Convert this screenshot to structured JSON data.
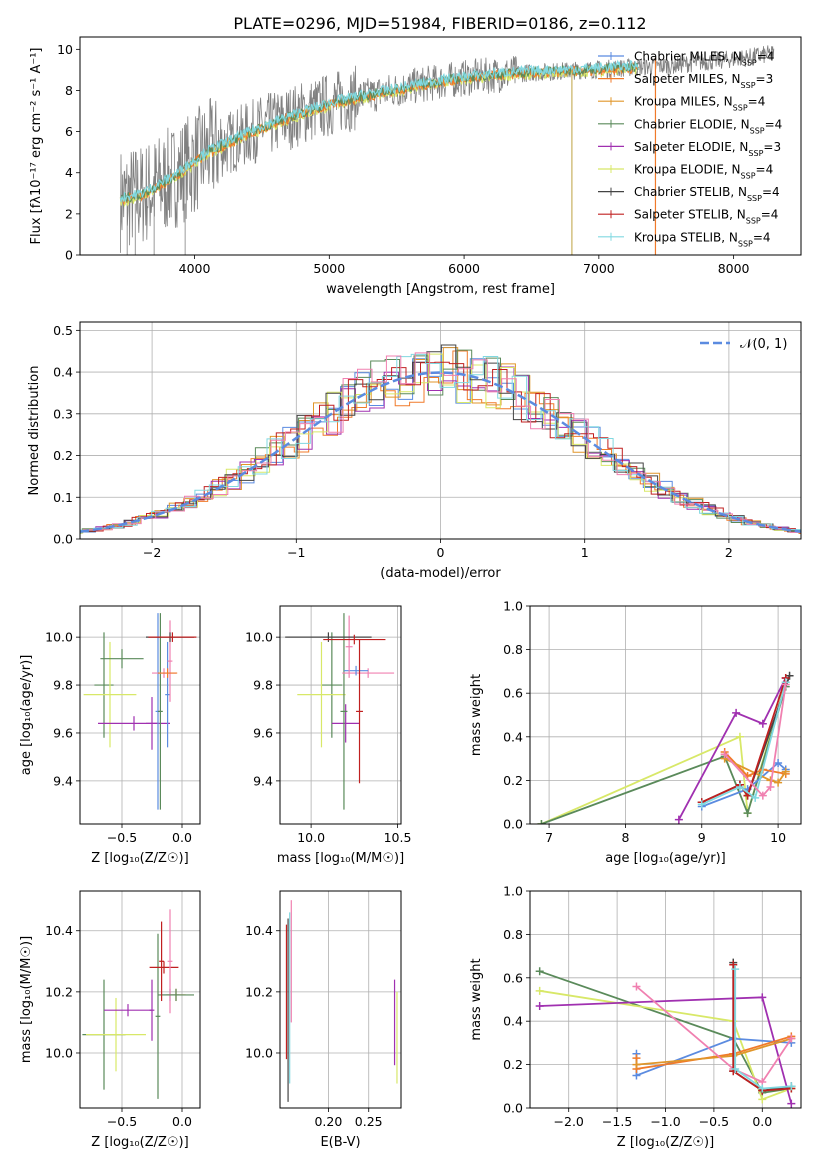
{
  "figure": {
    "title": "PLATE=0296, MJD=51984, FIBERID=0186, z=0.112"
  },
  "colors": {
    "chabrier_miles": "#5b8be0",
    "salpeter_miles": "#f07a2a",
    "kroupa_miles": "#e0962a",
    "chabrier_elodie": "#5a8a5a",
    "salpeter_elodie": "#a030b0",
    "kroupa_elodie": "#d8e868",
    "chabrier_stelib": "#444444",
    "salpeter_stelib": "#c02020",
    "kroupa_stelib": "#80d8e0",
    "pink": "#f080b0",
    "data": "#808080",
    "normal": "#5b8be0"
  },
  "chart_data": [
    {
      "id": "spectrum",
      "type": "line",
      "title": "PLATE=0296, MJD=51984, FIBERID=0186, z=0.112",
      "xlabel": "wavelength [Angstrom, rest frame]",
      "ylabel": "Flux [fλ10⁻¹⁷ erg cm⁻² s⁻¹ A⁻¹]",
      "xlim": [
        3150,
        8500
      ],
      "ylim": [
        0,
        10.6
      ],
      "xticks": [
        "4000",
        "5000",
        "6000",
        "7000",
        "8000"
      ],
      "yticks": [
        "0",
        "2",
        "4",
        "6",
        "8",
        "10"
      ],
      "grid": false,
      "legend_position": "right",
      "legend": [
        "Chabrier MILES, N_SSP=4",
        "Salpeter MILES, N_SSP=3",
        "Kroupa MILES, N_SSP=4",
        "Chabrier ELODIE, N_SSP=4",
        "Salpeter ELODIE, N_SSP=3",
        "Kroupa ELODIE, N_SSP=4",
        "Chabrier STELIB, N_SSP=4",
        "Salpeter STELIB, N_SSP=4",
        "Kroupa STELIB, N_SSP=4"
      ],
      "continuum_x": [
        3450,
        3600,
        3800,
        3950,
        4100,
        4300,
        4500,
        4800,
        5100,
        5400,
        5700,
        6000,
        6300,
        6600,
        6900,
        7200,
        7500,
        7800,
        8100,
        8300
      ],
      "continuum_y": [
        2.7,
        2.9,
        3.6,
        4.3,
        5.0,
        5.6,
        6.2,
        6.9,
        7.5,
        7.9,
        8.3,
        8.6,
        8.8,
        8.9,
        9.0,
        9.1,
        9.2,
        9.4,
        9.6,
        9.8
      ]
    },
    {
      "id": "residuals",
      "type": "line",
      "xlabel": "(data-model)/error",
      "ylabel": "Normed distribution",
      "xlim": [
        -2.5,
        2.5
      ],
      "ylim": [
        0,
        0.52
      ],
      "xticks": [
        "−2",
        "−1",
        "0",
        "1",
        "2"
      ],
      "yticks": [
        "0.0",
        "0.1",
        "0.2",
        "0.3",
        "0.4",
        "0.5"
      ],
      "grid": true,
      "legend_position": "top-right",
      "legend": [
        "𝒩(0, 1)"
      ]
    },
    {
      "id": "z_vs_age",
      "type": "scatter",
      "xlabel": "Z [log₁₀(Z/Z☉)]",
      "ylabel": "age  [log₁₀(age/yr)]",
      "xlim": [
        -0.85,
        0.15
      ],
      "ylim": [
        9.22,
        10.13
      ],
      "xticks": [
        "−0.5",
        "0.0"
      ],
      "yticks": [
        "9.4",
        "9.6",
        "9.8",
        "10.0"
      ],
      "grid": true,
      "points": [
        {
          "x": -0.65,
          "y": 9.8,
          "xerr": 0.08,
          "yerr": 0.22,
          "c": "chabrier_elodie"
        },
        {
          "x": -0.6,
          "y": 9.76,
          "xerr": 0.22,
          "yerr": 0.22,
          "c": "kroupa_elodie"
        },
        {
          "x": -0.5,
          "y": 9.91,
          "xerr": 0.18,
          "yerr": 0.04,
          "c": "chabrier_elodie"
        },
        {
          "x": -0.4,
          "y": 9.64,
          "xerr": 0.3,
          "yerr": 0.03,
          "c": "salpeter_elodie"
        },
        {
          "x": -0.25,
          "y": 9.64,
          "xerr": 0.05,
          "yerr": 0.11,
          "c": "salpeter_elodie"
        },
        {
          "x": -0.2,
          "y": 9.69,
          "xerr": 0.02,
          "yerr": 0.41,
          "c": "chabrier_miles"
        },
        {
          "x": -0.18,
          "y": 9.69,
          "xerr": 0.02,
          "yerr": 0.41,
          "c": "chabrier_elodie"
        },
        {
          "x": -0.15,
          "y": 9.85,
          "xerr": 0.1,
          "yerr": 0.02,
          "c": "pink"
        },
        {
          "x": -0.12,
          "y": 9.76,
          "xerr": 0.02,
          "yerr": 0.22,
          "c": "chabrier_miles"
        },
        {
          "x": -0.1,
          "y": 9.9,
          "xerr": 0.02,
          "yerr": 0.17,
          "c": "pink"
        },
        {
          "x": -0.12,
          "y": 9.85,
          "xerr": 0.08,
          "yerr": 0.02,
          "c": "salpeter_miles"
        },
        {
          "x": -0.1,
          "y": 10.0,
          "xerr": 0.2,
          "yerr": 0.02,
          "c": "chabrier_stelib"
        },
        {
          "x": -0.08,
          "y": 10.0,
          "xerr": 0.2,
          "yerr": 0.02,
          "c": "salpeter_stelib"
        }
      ]
    },
    {
      "id": "mass_vs_age",
      "type": "scatter",
      "xlabel": "mass [log₁₀(M/M☉)]",
      "ylabel": "",
      "xlim": [
        9.82,
        10.52
      ],
      "ylim": [
        9.22,
        10.13
      ],
      "xticks": [
        "10.0",
        "10.5"
      ],
      "yticks": [
        "9.4",
        "9.6",
        "9.8",
        "10.0"
      ],
      "grid": true,
      "points": [
        {
          "x": 10.12,
          "y": 9.8,
          "xerr": 0.06,
          "yerr": 0.22,
          "c": "chabrier_elodie"
        },
        {
          "x": 10.06,
          "y": 9.76,
          "xerr": 0.14,
          "yerr": 0.22,
          "c": "kroupa_elodie"
        },
        {
          "x": 10.2,
          "y": 9.64,
          "xerr": 0.08,
          "yerr": 0.08,
          "c": "salpeter_elodie"
        },
        {
          "x": 10.19,
          "y": 9.69,
          "xerr": 0.02,
          "yerr": 0.41,
          "c": "chabrier_elodie"
        },
        {
          "x": 10.33,
          "y": 9.85,
          "xerr": 0.15,
          "yerr": 0.02,
          "c": "pink"
        },
        {
          "x": 10.26,
          "y": 9.86,
          "xerr": 0.07,
          "yerr": 0.02,
          "c": "chabrier_miles"
        },
        {
          "x": 10.22,
          "y": 9.96,
          "xerr": 0.02,
          "yerr": 0.13,
          "c": "pink"
        },
        {
          "x": 10.28,
          "y": 9.69,
          "xerr": 0.02,
          "yerr": 0.3,
          "c": "salpeter_stelib"
        },
        {
          "x": 10.1,
          "y": 10.0,
          "xerr": 0.25,
          "yerr": 0.02,
          "c": "chabrier_stelib"
        },
        {
          "x": 10.25,
          "y": 9.99,
          "xerr": 0.18,
          "yerr": 0.02,
          "c": "salpeter_stelib"
        }
      ]
    },
    {
      "id": "age_vs_weight",
      "type": "line",
      "xlabel": "age  [log₁₀(age/yr)]",
      "ylabel": "mass weight",
      "xlim": [
        6.75,
        10.3
      ],
      "ylim": [
        0,
        1.0
      ],
      "xticks": [
        "7",
        "8",
        "9",
        "10"
      ],
      "yticks": [
        "0.0",
        "0.2",
        "0.4",
        "0.6",
        "0.8",
        "1.0"
      ],
      "grid": true,
      "series": [
        {
          "c": "kroupa_elodie",
          "x": [
            6.9,
            9.5,
            9.6,
            10.1
          ],
          "y": [
            0.0,
            0.4,
            0.05,
            0.65
          ]
        },
        {
          "c": "chabrier_elodie",
          "x": [
            6.9,
            9.3,
            9.6,
            10.1
          ],
          "y": [
            0.0,
            0.31,
            0.05,
            0.63
          ]
        },
        {
          "c": "salpeter_elodie",
          "x": [
            8.7,
            9.45,
            9.8,
            10.1
          ],
          "y": [
            0.02,
            0.51,
            0.46,
            0.67
          ]
        },
        {
          "c": "chabrier_miles",
          "x": [
            9.0,
            9.6,
            10.0,
            10.1
          ],
          "y": [
            0.08,
            0.16,
            0.28,
            0.25
          ]
        },
        {
          "c": "salpeter_miles",
          "x": [
            9.3,
            9.6,
            9.8,
            10.1
          ],
          "y": [
            0.33,
            0.22,
            0.25,
            0.23
          ]
        },
        {
          "c": "kroupa_miles",
          "x": [
            9.3,
            9.9,
            10.0,
            10.1
          ],
          "y": [
            0.3,
            0.2,
            0.19,
            0.24
          ]
        },
        {
          "c": "chabrier_stelib",
          "x": [
            9.0,
            9.5,
            9.6,
            10.15
          ],
          "y": [
            0.1,
            0.18,
            0.13,
            0.68
          ]
        },
        {
          "c": "salpeter_stelib",
          "x": [
            9.0,
            9.5,
            9.6,
            10.1
          ],
          "y": [
            0.1,
            0.18,
            0.13,
            0.67
          ]
        },
        {
          "c": "kroupa_stelib",
          "x": [
            9.0,
            9.5,
            9.7,
            10.1
          ],
          "y": [
            0.09,
            0.17,
            0.12,
            0.65
          ]
        },
        {
          "c": "pink",
          "x": [
            9.3,
            9.8,
            9.9,
            10.1
          ],
          "y": [
            0.32,
            0.13,
            0.17,
            0.64
          ]
        }
      ]
    },
    {
      "id": "z_vs_mass",
      "type": "scatter",
      "xlabel": "Z [log₁₀(Z/Z☉)]",
      "ylabel": "mass [log₁₀(M/M☉)]",
      "xlim": [
        -0.85,
        0.15
      ],
      "ylim": [
        9.82,
        10.53
      ],
      "xticks": [
        "−0.5",
        "0.0"
      ],
      "yticks": [
        "10.0",
        "10.2",
        "10.4"
      ],
      "grid": true,
      "points": [
        {
          "x": -0.65,
          "y": 10.06,
          "xerr": 0.18,
          "yerr": 0.18,
          "c": "chabrier_elodie"
        },
        {
          "x": -0.55,
          "y": 10.06,
          "xerr": 0.25,
          "yerr": 0.12,
          "c": "kroupa_elodie"
        },
        {
          "x": -0.45,
          "y": 10.14,
          "xerr": 0.2,
          "yerr": 0.02,
          "c": "salpeter_elodie"
        },
        {
          "x": -0.25,
          "y": 10.14,
          "xerr": 0.02,
          "yerr": 0.1,
          "c": "salpeter_elodie"
        },
        {
          "x": -0.2,
          "y": 10.12,
          "xerr": 0.02,
          "yerr": 0.27,
          "c": "chabrier_elodie"
        },
        {
          "x": -0.1,
          "y": 10.19,
          "xerr": 0.08,
          "yerr": 0.02,
          "c": "chabrier_miles"
        },
        {
          "x": -0.05,
          "y": 10.19,
          "xerr": 0.08,
          "yerr": 0.02,
          "c": "salpeter_miles"
        },
        {
          "x": -0.15,
          "y": 10.28,
          "xerr": 0.12,
          "yerr": 0.02,
          "c": "salpeter_stelib"
        },
        {
          "x": -0.1,
          "y": 10.3,
          "xerr": 0.02,
          "yerr": 0.17,
          "c": "pink"
        },
        {
          "x": -0.05,
          "y": 10.19,
          "xerr": 0.15,
          "yerr": 0.02,
          "c": "chabrier_elodie"
        },
        {
          "x": -0.17,
          "y": 10.3,
          "xerr": 0.02,
          "yerr": 0.13,
          "c": "salpeter_stelib"
        }
      ]
    },
    {
      "id": "ebv_vs_mass",
      "type": "scatter",
      "xlabel": "E(B-V)",
      "ylabel": "",
      "xlim": [
        0.14,
        0.29
      ],
      "ylim": [
        9.82,
        10.53
      ],
      "xticks": [
        "0.20",
        "0.25"
      ],
      "yticks": [
        "10.0",
        "10.2",
        "10.4"
      ],
      "grid": true,
      "points": [
        {
          "x": 0.148,
          "y": 10.2,
          "xerr": 0.0,
          "yerr": 0.22,
          "c": "salpeter_stelib"
        },
        {
          "x": 0.15,
          "y": 10.14,
          "xerr": 0.0,
          "yerr": 0.3,
          "c": "chabrier_stelib"
        },
        {
          "x": 0.152,
          "y": 10.18,
          "xerr": 0.0,
          "yerr": 0.28,
          "c": "kroupa_stelib"
        },
        {
          "x": 0.154,
          "y": 10.3,
          "xerr": 0.0,
          "yerr": 0.2,
          "c": "pink"
        },
        {
          "x": 0.282,
          "y": 10.1,
          "xerr": 0.0,
          "yerr": 0.14,
          "c": "salpeter_elodie"
        },
        {
          "x": 0.285,
          "y": 10.05,
          "xerr": 0.0,
          "yerr": 0.15,
          "c": "kroupa_elodie"
        }
      ]
    },
    {
      "id": "z_vs_weight",
      "type": "line",
      "xlabel": "Z [log₁₀(Z/Z☉)]",
      "ylabel": "mass weight",
      "xlim": [
        -2.4,
        0.4
      ],
      "ylim": [
        0,
        1.0
      ],
      "xticks": [
        "−2.0",
        "−1.5",
        "−1.0",
        "−0.5",
        "0.0"
      ],
      "yticks": [
        "0.0",
        "0.2",
        "0.4",
        "0.6",
        "0.8",
        "1.0"
      ],
      "grid": true,
      "series": [
        {
          "c": "chabrier_elodie",
          "x": [
            -2.3,
            -0.3,
            0.0,
            0.3
          ],
          "y": [
            0.63,
            0.32,
            0.07,
            0.09
          ]
        },
        {
          "c": "kroupa_elodie",
          "x": [
            -2.3,
            -0.3,
            0.0,
            0.3
          ],
          "y": [
            0.54,
            0.4,
            0.04,
            0.09
          ]
        },
        {
          "c": "salpeter_elodie",
          "x": [
            -2.3,
            0.0,
            0.3
          ],
          "y": [
            0.47,
            0.51,
            0.02
          ]
        },
        {
          "c": "chabrier_miles",
          "x": [
            -1.3,
            -1.3,
            -0.3,
            0.3
          ],
          "y": [
            0.25,
            0.15,
            0.32,
            0.3
          ]
        },
        {
          "c": "salpeter_miles",
          "x": [
            -1.3,
            -1.3,
            -0.3,
            0.3
          ],
          "y": [
            0.23,
            0.18,
            0.25,
            0.33
          ]
        },
        {
          "c": "kroupa_miles",
          "x": [
            -1.3,
            -0.3,
            0.3
          ],
          "y": [
            0.2,
            0.24,
            0.32
          ]
        },
        {
          "c": "pink",
          "x": [
            -1.3,
            -0.3,
            0.0,
            0.3
          ],
          "y": [
            0.56,
            0.18,
            0.12,
            0.32
          ]
        },
        {
          "c": "chabrier_stelib",
          "x": [
            -0.3,
            -0.3,
            0.0,
            0.3
          ],
          "y": [
            0.67,
            0.17,
            0.08,
            0.1
          ]
        },
        {
          "c": "salpeter_stelib",
          "x": [
            -0.3,
            -0.3,
            0.0,
            0.3
          ],
          "y": [
            0.66,
            0.17,
            0.08,
            0.09
          ]
        },
        {
          "c": "kroupa_stelib",
          "x": [
            -0.28,
            -0.28,
            0.0,
            0.3
          ],
          "y": [
            0.64,
            0.18,
            0.09,
            0.1
          ]
        }
      ]
    }
  ]
}
